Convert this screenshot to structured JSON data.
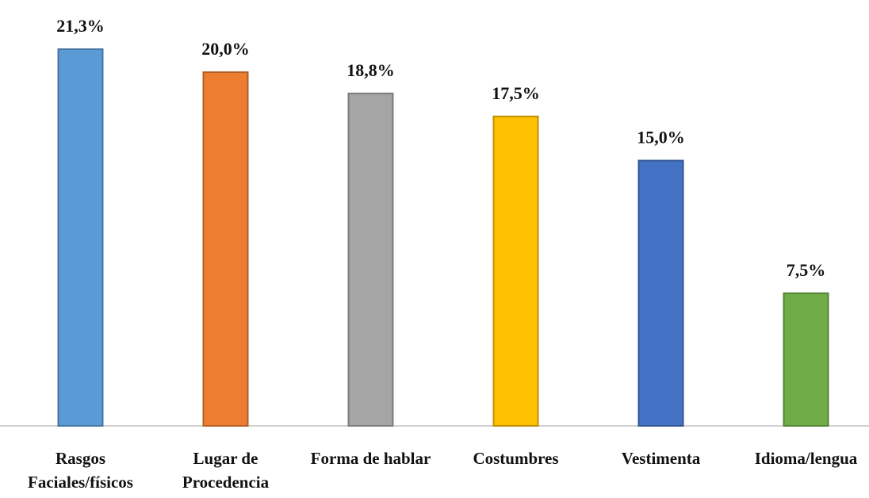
{
  "chart_data": {
    "type": "bar",
    "categories": [
      "Rasgos Faciales/físicos",
      "Lugar de Procedencia",
      "Forma de hablar",
      "Costumbres",
      "Vestimenta",
      "Idioma/lengua"
    ],
    "values": [
      21.3,
      20.0,
      18.8,
      17.5,
      15.0,
      7.5
    ],
    "value_labels": [
      "21,3%",
      "20,0%",
      "18,8%",
      "17,5%",
      "15,0%",
      "7,5%"
    ],
    "colors": [
      "#5b9bd5",
      "#ed7d31",
      "#a5a5a5",
      "#ffc000",
      "#4472c4",
      "#70ad47"
    ],
    "ylim": [
      0,
      23.5
    ]
  }
}
